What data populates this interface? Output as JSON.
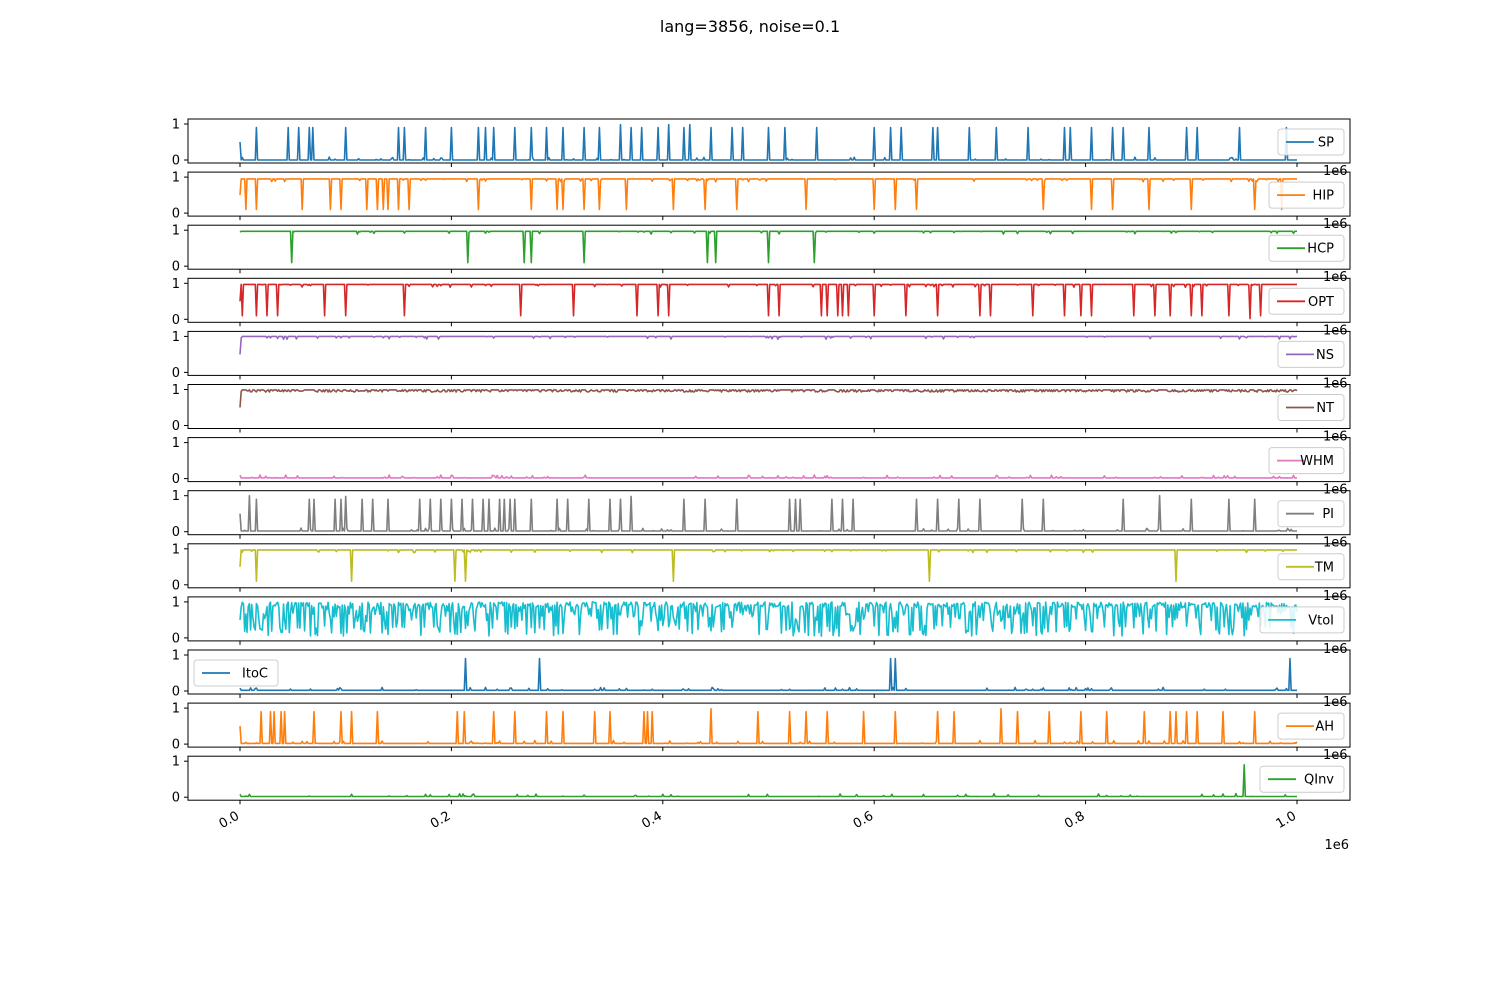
{
  "figure": {
    "title": "lang=3856, noise=0.1"
  },
  "chart_data": {
    "type": "line",
    "title": "lang=3856, noise=0.1",
    "shared_x": true,
    "x_range": [
      0,
      1000000
    ],
    "x_ticks": [
      0,
      200000,
      400000,
      600000,
      800000,
      1000000
    ],
    "x_tick_labels": [
      "0.0",
      "0.2",
      "0.4",
      "0.6",
      "0.8",
      "1.0"
    ],
    "x_offset_label": "1e6",
    "y_range": [
      0,
      1
    ],
    "y_ticks": [
      0,
      1
    ],
    "y_tick_labels": [
      "0",
      "1"
    ],
    "series": [
      {
        "name": "SP",
        "color": "#1f77b4",
        "legend_position": "right",
        "baseline": 0.0,
        "start": 0.5,
        "spikes": [
          [
            15000,
            0.9
          ],
          [
            45000,
            0.9
          ],
          [
            55000,
            0.9
          ],
          [
            65000,
            0.9
          ],
          [
            68000,
            0.9
          ],
          [
            100000,
            0.9
          ],
          [
            150000,
            0.9
          ],
          [
            155000,
            0.9
          ],
          [
            175000,
            0.9
          ],
          [
            200000,
            0.9
          ],
          [
            225000,
            0.9
          ],
          [
            232000,
            0.9
          ],
          [
            240000,
            0.9
          ],
          [
            260000,
            0.9
          ],
          [
            275000,
            0.9
          ],
          [
            290000,
            0.9
          ],
          [
            305000,
            0.9
          ],
          [
            325000,
            0.9
          ],
          [
            340000,
            0.9
          ],
          [
            360000,
            0.98
          ],
          [
            370000,
            0.9
          ],
          [
            380000,
            0.9
          ],
          [
            395000,
            0.9
          ],
          [
            405000,
            0.98
          ],
          [
            420000,
            0.9
          ],
          [
            425000,
            0.98
          ],
          [
            445000,
            0.9
          ],
          [
            465000,
            0.9
          ],
          [
            475000,
            0.9
          ],
          [
            500000,
            0.9
          ],
          [
            515000,
            0.9
          ],
          [
            545000,
            0.9
          ],
          [
            600000,
            0.9
          ],
          [
            615000,
            0.9
          ],
          [
            625000,
            0.9
          ],
          [
            655000,
            0.9
          ],
          [
            660000,
            0.9
          ],
          [
            690000,
            0.9
          ],
          [
            715000,
            0.9
          ],
          [
            745000,
            0.9
          ],
          [
            780000,
            0.9
          ],
          [
            785000,
            0.9
          ],
          [
            805000,
            0.9
          ],
          [
            825000,
            0.9
          ],
          [
            835000,
            0.9
          ],
          [
            860000,
            0.9
          ],
          [
            895000,
            0.9
          ],
          [
            905000,
            0.9
          ],
          [
            945000,
            0.9
          ],
          [
            990000,
            0.9
          ]
        ]
      },
      {
        "name": "HIP",
        "color": "#ff7f0e",
        "legend_position": "right",
        "baseline": 0.95,
        "start": 0.5,
        "spikes": [
          [
            5000,
            0.1
          ],
          [
            15000,
            0.1
          ],
          [
            58000,
            0.1
          ],
          [
            85000,
            0.1
          ],
          [
            95000,
            0.1
          ],
          [
            120000,
            0.1
          ],
          [
            130000,
            0.1
          ],
          [
            135000,
            0.1
          ],
          [
            140000,
            0.1
          ],
          [
            150000,
            0.1
          ],
          [
            160000,
            0.1
          ],
          [
            225000,
            0.1
          ],
          [
            275000,
            0.1
          ],
          [
            300000,
            0.1
          ],
          [
            305000,
            0.1
          ],
          [
            325000,
            0.1
          ],
          [
            340000,
            0.1
          ],
          [
            365000,
            0.1
          ],
          [
            410000,
            0.1
          ],
          [
            440000,
            0.1
          ],
          [
            470000,
            0.1
          ],
          [
            535000,
            0.1
          ],
          [
            600000,
            0.1
          ],
          [
            620000,
            0.1
          ],
          [
            640000,
            0.1
          ],
          [
            760000,
            0.1
          ],
          [
            805000,
            0.1
          ],
          [
            825000,
            0.1
          ],
          [
            860000,
            0.1
          ],
          [
            900000,
            0.1
          ],
          [
            960000,
            0.1
          ],
          [
            985000,
            0.1
          ]
        ]
      },
      {
        "name": "HCP",
        "color": "#2ca02c",
        "legend_position": "right",
        "baseline": 0.97,
        "start": 0.95,
        "spikes": [
          [
            48000,
            0.1
          ],
          [
            215000,
            0.1
          ],
          [
            268000,
            0.1
          ],
          [
            275000,
            0.1
          ],
          [
            325000,
            0.1
          ],
          [
            442000,
            0.1
          ],
          [
            450000,
            0.1
          ],
          [
            500000,
            0.1
          ],
          [
            543000,
            0.1
          ]
        ]
      },
      {
        "name": "OPT",
        "color": "#d62728",
        "legend_position": "right",
        "baseline": 0.97,
        "start": 0.5,
        "spikes": [
          [
            2000,
            0.1
          ],
          [
            15000,
            0.1
          ],
          [
            25000,
            0.1
          ],
          [
            35000,
            0.1
          ],
          [
            80000,
            0.1
          ],
          [
            100000,
            0.1
          ],
          [
            155000,
            0.1
          ],
          [
            265000,
            0.1
          ],
          [
            315000,
            0.1
          ],
          [
            375000,
            0.1
          ],
          [
            395000,
            0.1
          ],
          [
            405000,
            0.1
          ],
          [
            500000,
            0.1
          ],
          [
            510000,
            0.1
          ],
          [
            550000,
            0.1
          ],
          [
            555000,
            0.1
          ],
          [
            565000,
            0.1
          ],
          [
            570000,
            0.1
          ],
          [
            575000,
            0.1
          ],
          [
            600000,
            0.1
          ],
          [
            630000,
            0.1
          ],
          [
            660000,
            0.1
          ],
          [
            700000,
            0.1
          ],
          [
            710000,
            0.1
          ],
          [
            750000,
            0.1
          ],
          [
            780000,
            0.1
          ],
          [
            795000,
            0.1
          ],
          [
            805000,
            0.1
          ],
          [
            845000,
            0.1
          ],
          [
            865000,
            0.1
          ],
          [
            880000,
            0.1
          ],
          [
            900000,
            0.1
          ],
          [
            910000,
            0.1
          ],
          [
            935000,
            0.1
          ],
          [
            955000,
            0.02
          ],
          [
            965000,
            0.1
          ]
        ]
      },
      {
        "name": "NS",
        "color": "#9467bd",
        "legend_position": "right",
        "baseline": 1.0,
        "start": 0.5,
        "spikes": []
      },
      {
        "name": "NT",
        "color": "#8c564b",
        "legend_position": "right",
        "baseline": 0.97,
        "start": 0.5,
        "spikes": []
      },
      {
        "name": "WHM",
        "color": "#e377c2",
        "legend_position": "right",
        "baseline": 0.02,
        "start": 0.1,
        "spikes": []
      },
      {
        "name": "PI",
        "color": "#7f7f7f",
        "legend_position": "right",
        "baseline": 0.02,
        "start": 0.5,
        "spikes": [
          [
            8000,
            1.0
          ],
          [
            15000,
            0.9
          ],
          [
            65000,
            0.9
          ],
          [
            70000,
            0.9
          ],
          [
            90000,
            0.9
          ],
          [
            95000,
            0.9
          ],
          [
            100000,
            0.98
          ],
          [
            115000,
            0.9
          ],
          [
            125000,
            0.9
          ],
          [
            140000,
            0.9
          ],
          [
            170000,
            0.9
          ],
          [
            180000,
            0.9
          ],
          [
            190000,
            0.9
          ],
          [
            200000,
            0.9
          ],
          [
            210000,
            0.9
          ],
          [
            220000,
            0.9
          ],
          [
            230000,
            0.9
          ],
          [
            235000,
            0.9
          ],
          [
            245000,
            0.9
          ],
          [
            250000,
            0.9
          ],
          [
            255000,
            0.9
          ],
          [
            260000,
            0.9
          ],
          [
            275000,
            0.9
          ],
          [
            300000,
            0.9
          ],
          [
            310000,
            0.9
          ],
          [
            330000,
            0.9
          ],
          [
            350000,
            0.9
          ],
          [
            360000,
            0.9
          ],
          [
            370000,
            0.98
          ],
          [
            420000,
            0.9
          ],
          [
            440000,
            0.9
          ],
          [
            470000,
            0.9
          ],
          [
            520000,
            0.9
          ],
          [
            525000,
            0.9
          ],
          [
            530000,
            0.9
          ],
          [
            560000,
            0.9
          ],
          [
            570000,
            0.9
          ],
          [
            580000,
            0.9
          ],
          [
            640000,
            0.9
          ],
          [
            660000,
            0.9
          ],
          [
            680000,
            0.9
          ],
          [
            700000,
            0.9
          ],
          [
            740000,
            0.9
          ],
          [
            760000,
            0.9
          ],
          [
            835000,
            0.9
          ],
          [
            870000,
            1.0
          ],
          [
            900000,
            0.9
          ],
          [
            935000,
            0.9
          ],
          [
            960000,
            0.9
          ]
        ]
      },
      {
        "name": "TM",
        "color": "#bcbd22",
        "legend_position": "right",
        "baseline": 0.97,
        "start": 0.5,
        "spikes": [
          [
            15000,
            0.1
          ],
          [
            105000,
            0.1
          ],
          [
            203000,
            0.1
          ],
          [
            213000,
            0.1
          ],
          [
            410000,
            0.1
          ],
          [
            652000,
            0.1
          ],
          [
            885000,
            0.1
          ]
        ]
      },
      {
        "name": "VtoI",
        "color": "#17becf",
        "legend_position": "right",
        "baseline": 0.85,
        "start": 0.5,
        "dense": true,
        "dense_min": 0.05,
        "dense_max": 1.0
      },
      {
        "name": "ItoC",
        "color": "#1f77b4",
        "legend_position": "left",
        "baseline": 0.02,
        "start": 0.08,
        "spikes": [
          [
            15000,
            0.08
          ],
          [
            213000,
            0.9
          ],
          [
            243000,
            0.05
          ],
          [
            283000,
            0.9
          ],
          [
            335000,
            0.05
          ],
          [
            390000,
            0.05
          ],
          [
            570000,
            0.05
          ],
          [
            615000,
            0.9
          ],
          [
            620000,
            0.9
          ],
          [
            757000,
            0.05
          ],
          [
            823000,
            0.05
          ],
          [
            912000,
            0.05
          ],
          [
            993000,
            0.9
          ]
        ]
      },
      {
        "name": "AH",
        "color": "#ff7f0e",
        "legend_position": "right",
        "baseline": 0.02,
        "start": 0.5,
        "spikes": [
          [
            20000,
            0.9
          ],
          [
            28000,
            0.9
          ],
          [
            32000,
            0.9
          ],
          [
            38000,
            0.9
          ],
          [
            42000,
            0.9
          ],
          [
            70000,
            0.9
          ],
          [
            95000,
            0.9
          ],
          [
            105000,
            0.9
          ],
          [
            130000,
            0.9
          ],
          [
            205000,
            0.9
          ],
          [
            212000,
            0.9
          ],
          [
            240000,
            0.9
          ],
          [
            260000,
            0.9
          ],
          [
            290000,
            0.9
          ],
          [
            305000,
            0.9
          ],
          [
            335000,
            0.9
          ],
          [
            350000,
            0.9
          ],
          [
            382000,
            0.9
          ],
          [
            385000,
            0.9
          ],
          [
            390000,
            0.9
          ],
          [
            445000,
            0.98
          ],
          [
            490000,
            0.9
          ],
          [
            520000,
            0.9
          ],
          [
            535000,
            0.9
          ],
          [
            555000,
            0.9
          ],
          [
            590000,
            0.9
          ],
          [
            620000,
            0.9
          ],
          [
            660000,
            0.9
          ],
          [
            675000,
            0.9
          ],
          [
            720000,
            0.98
          ],
          [
            735000,
            0.9
          ],
          [
            765000,
            0.9
          ],
          [
            795000,
            0.9
          ],
          [
            820000,
            0.9
          ],
          [
            855000,
            0.9
          ],
          [
            880000,
            0.9
          ],
          [
            885000,
            0.9
          ],
          [
            895000,
            0.9
          ],
          [
            905000,
            0.9
          ],
          [
            930000,
            0.9
          ],
          [
            960000,
            0.9
          ]
        ]
      },
      {
        "name": "QInv",
        "color": "#2ca02c",
        "legend_position": "right",
        "baseline": 0.02,
        "start": 0.08,
        "spikes": [
          [
            105000,
            0.08
          ],
          [
            175000,
            0.08
          ],
          [
            498000,
            0.08
          ],
          [
            910000,
            0.08
          ],
          [
            950000,
            0.9
          ]
        ]
      }
    ]
  }
}
